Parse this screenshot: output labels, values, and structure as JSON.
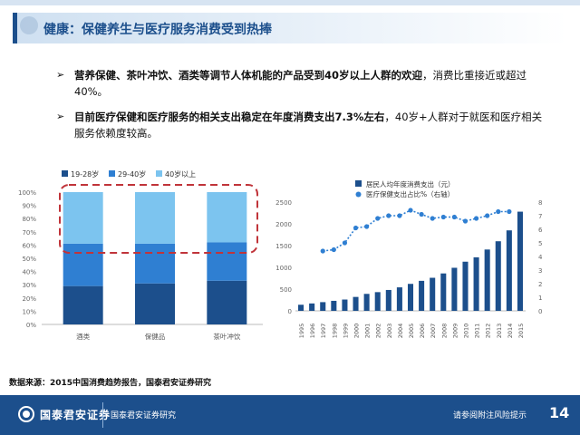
{
  "header": {
    "title": "健康：保健养生与医疗服务消费受到热捧"
  },
  "bullets": [
    {
      "bold": "营养保健、茶叶冲饮、酒类等调节人体机能的产品受到40岁以上人群的欢迎",
      "normal": "，消费比重接近或超过40%。"
    },
    {
      "bold": "目前医疗保健和医疗服务的相关支出稳定在年度消费支出7.3%左右",
      "normal": "，40岁+人群对于就医和医疗相关服务依赖度较高。"
    }
  ],
  "source": "数据来源：2015中国消费趋势报告，国泰君安证券研究",
  "footer": {
    "company": "国泰君安证券",
    "research": "国泰君安证券研究",
    "risk": "请参阅附注风险提示",
    "page": "14"
  },
  "colors": {
    "dark": "#1c4f8c",
    "mid": "#2f7fd2",
    "light": "#7cc4ef",
    "dashed": "#c0343a"
  },
  "chart_data": [
    {
      "type": "bar",
      "stacked": true,
      "categories": [
        "酒类",
        "保健品",
        "茶叶冲饮"
      ],
      "series": [
        {
          "name": "19-28岁",
          "values": [
            29,
            31,
            33
          ]
        },
        {
          "name": "29-40岁",
          "values": [
            32,
            30,
            29
          ]
        },
        {
          "name": "40岁以上",
          "values": [
            39,
            39,
            38
          ]
        }
      ],
      "ylim": [
        0,
        100
      ],
      "yticks": [
        "0%",
        "10%",
        "20%",
        "30%",
        "40%",
        "50%",
        "60%",
        "70%",
        "80%",
        "90%",
        "100%"
      ],
      "legend": "top"
    },
    {
      "type": "bar+line",
      "x": [
        "1995",
        "1996",
        "1997",
        "1998",
        "1999",
        "2000",
        "2001",
        "2002",
        "2003",
        "2004",
        "2005",
        "2006",
        "2007",
        "2008",
        "2009",
        "2010",
        "2011",
        "2012",
        "2013",
        "2014",
        "2015"
      ],
      "series": [
        {
          "name": "居民人均年度消费支出（元）",
          "type": "bar",
          "axis": "left",
          "values": [
            140,
            170,
            200,
            230,
            260,
            320,
            390,
            430,
            480,
            540,
            620,
            690,
            760,
            860,
            990,
            1130,
            1230,
            1410,
            1600,
            1850,
            2280
          ]
        },
        {
          "name": "医疗保健支出占比%（右轴）",
          "type": "line",
          "axis": "right",
          "values": [
            null,
            null,
            4.4,
            4.5,
            5.0,
            6.1,
            6.2,
            6.8,
            7.0,
            7.0,
            7.4,
            7.1,
            6.8,
            6.9,
            6.9,
            6.6,
            6.8,
            7.0,
            7.3,
            7.3,
            null
          ]
        }
      ],
      "ylim_left": [
        0,
        2500
      ],
      "yticks_left": [
        "0",
        "500",
        "1000",
        "1500",
        "2000",
        "2500"
      ],
      "ylim_right": [
        0,
        8
      ],
      "yticks_right": [
        "0",
        "1",
        "2",
        "3",
        "4",
        "5",
        "6",
        "7",
        "8"
      ],
      "legend": "top"
    }
  ]
}
